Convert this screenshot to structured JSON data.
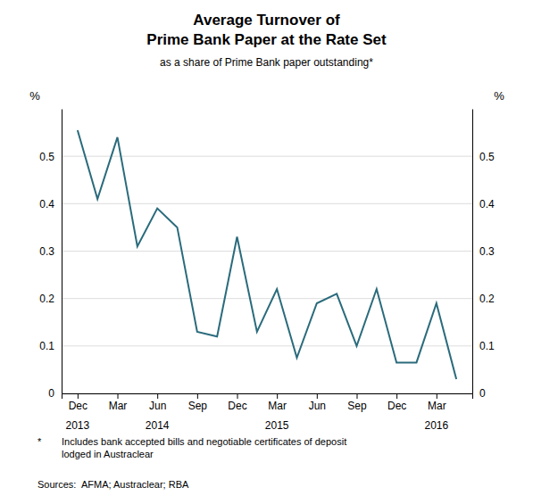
{
  "chart_data": {
    "type": "line",
    "title": [
      "Average Turnover of",
      "Prime Bank Paper at the Rate Set"
    ],
    "subtitle": "as a share of Prime Bank paper outstanding*",
    "ylabel": "%",
    "y2label": "%",
    "color": "#2a6b7c",
    "grid": "y",
    "x": [
      0,
      0.5,
      1,
      1.5,
      2,
      2.5,
      3,
      3.5,
      4,
      4.5,
      5,
      5.5,
      6,
      6.5,
      7,
      7.5,
      8,
      8.5,
      9,
      9.5
    ],
    "values": [
      0.555,
      0.41,
      0.54,
      0.31,
      0.39,
      0.35,
      0.13,
      0.12,
      0.33,
      0.13,
      0.22,
      0.075,
      0.19,
      0.21,
      0.1,
      0.22,
      0.065,
      0.065,
      0.19,
      0.03
    ],
    "xlim": [
      -0.4,
      9.9
    ],
    "xticks": [
      {
        "value": 0,
        "label": "Dec"
      },
      {
        "value": 1,
        "label": "Mar"
      },
      {
        "value": 2,
        "label": "Jun"
      },
      {
        "value": 3,
        "label": "Sep"
      },
      {
        "value": 4,
        "label": "Dec"
      },
      {
        "value": 5,
        "label": "Mar"
      },
      {
        "value": 6,
        "label": "Jun"
      },
      {
        "value": 7,
        "label": "Sep"
      },
      {
        "value": 8,
        "label": "Dec"
      },
      {
        "value": 9,
        "label": "Mar"
      }
    ],
    "annotations": [
      {
        "text": "2013",
        "x": 0
      },
      {
        "text": "2014",
        "x": 2
      },
      {
        "text": "2015",
        "x": 5
      },
      {
        "text": "2016",
        "x": 9
      }
    ],
    "ylim": [
      0,
      0.6
    ],
    "yticks": [
      0,
      0.1,
      0.2,
      0.3,
      0.4,
      0.5
    ],
    "y2lim": [
      0,
      0.6
    ],
    "y2ticks": [
      0,
      0.1,
      0.2,
      0.3,
      0.4,
      0.5
    ],
    "footnote_marker": "*",
    "footnote": [
      "Includes bank accepted bills and negotiable certificates of deposit",
      "lodged in Austraclear"
    ],
    "source": "Sources:  AFMA; Austraclear; RBA"
  }
}
